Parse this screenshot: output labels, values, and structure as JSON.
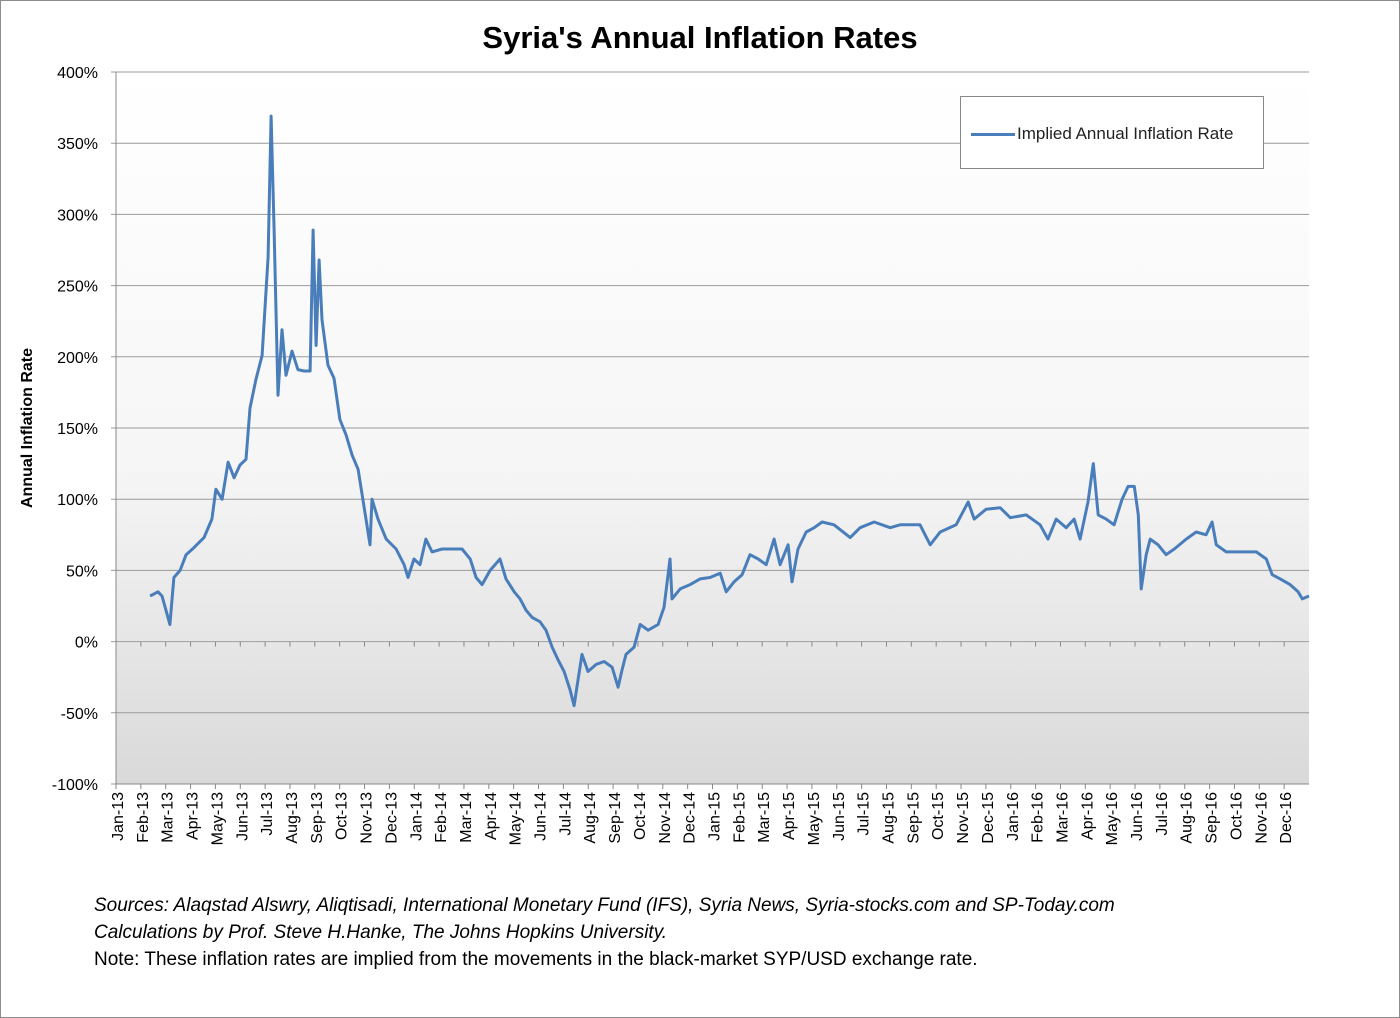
{
  "chart_data": {
    "type": "line",
    "title": "Syria's Annual Inflation Rates",
    "xlabel": "",
    "ylabel": "Annual Inflation Rate",
    "ylim": [
      -100,
      400
    ],
    "yticks": [
      "400%",
      "350%",
      "300%",
      "250%",
      "200%",
      "150%",
      "100%",
      "50%",
      "0%",
      "-50%",
      "-100%"
    ],
    "ytick_values": [
      400,
      350,
      300,
      250,
      200,
      150,
      100,
      50,
      0,
      -50,
      -100
    ],
    "x_unit": "months since Jan-13",
    "xlim": [
      0,
      48
    ],
    "xticks": [
      "Jan-13",
      "Feb-13",
      "Mar-13",
      "Apr-13",
      "May-13",
      "Jun-13",
      "Jul-13",
      "Aug-13",
      "Sep-13",
      "Oct-13",
      "Nov-13",
      "Dec-13",
      "Jan-14",
      "Feb-14",
      "Mar-14",
      "Apr-14",
      "May-14",
      "Jun-14",
      "Jul-14",
      "Aug-14",
      "Sep-14",
      "Oct-14",
      "Nov-14",
      "Dec-14",
      "Jan-15",
      "Feb-15",
      "Mar-15",
      "Apr-15",
      "May-15",
      "Jun-15",
      "Jul-15",
      "Aug-15",
      "Sep-15",
      "Oct-15",
      "Nov-15",
      "Dec-15",
      "Jan-16",
      "Feb-16",
      "Mar-16",
      "Apr-16",
      "May-16",
      "Jun-16",
      "Jul-16",
      "Aug-16",
      "Sep-16",
      "Oct-16",
      "Nov-16",
      "Dec-16"
    ],
    "grid": true,
    "legend_position": "top-right",
    "series": [
      {
        "name": "Implied Annual Inflation Rate",
        "color": "#4a7ebb",
        "x": [
          1.37,
          1.69,
          1.85,
          2.01,
          2.17,
          2.33,
          2.58,
          2.82,
          3.14,
          3.54,
          3.86,
          4.02,
          4.27,
          4.51,
          4.75,
          4.99,
          5.23,
          5.39,
          5.63,
          5.88,
          6.12,
          6.24,
          6.36,
          6.52,
          6.68,
          6.84,
          7.08,
          7.32,
          7.57,
          7.81,
          7.93,
          8.05,
          8.17,
          8.29,
          8.53,
          8.77,
          9.01,
          9.26,
          9.5,
          9.74,
          10.06,
          10.22,
          10.3,
          10.54,
          10.87,
          11.27,
          11.59,
          11.75,
          11.99,
          12.23,
          12.47,
          12.72,
          13.12,
          13.52,
          13.92,
          14.25,
          14.49,
          14.73,
          15.05,
          15.45,
          15.69,
          16.02,
          16.26,
          16.5,
          16.74,
          17.06,
          17.3,
          17.55,
          17.79,
          18.03,
          18.27,
          18.43,
          18.59,
          18.75,
          18.99,
          19.32,
          19.64,
          19.96,
          20.2,
          20.36,
          20.52,
          20.84,
          21.09,
          21.41,
          21.81,
          22.05,
          22.29,
          22.37,
          22.7,
          23.1,
          23.5,
          23.9,
          24.31,
          24.55,
          24.87,
          25.19,
          25.51,
          25.84,
          26.16,
          26.48,
          26.72,
          27.04,
          27.2,
          27.44,
          27.77,
          28.09,
          28.41,
          28.89,
          29.54,
          29.94,
          30.5,
          31.15,
          31.55,
          32.35,
          32.76,
          33.16,
          33.8,
          34.29,
          34.53,
          35.01,
          35.57,
          35.98,
          36.62,
          37.18,
          37.5,
          37.83,
          38.23,
          38.55,
          38.79,
          39.11,
          39.32,
          39.52,
          39.84,
          40.16,
          40.48,
          40.72,
          40.97,
          41.13,
          41.25,
          41.45,
          41.61,
          41.93,
          42.25,
          42.58,
          43.06,
          43.46,
          43.86,
          44.1,
          44.27,
          44.67,
          45.23,
          45.88,
          46.28,
          46.52,
          46.84,
          47.24,
          47.56,
          47.73,
          48.0
        ],
        "values": [
          32,
          35,
          32,
          22,
          12,
          45,
          50,
          61,
          66,
          73,
          86,
          107,
          100,
          126,
          115,
          124,
          128,
          164,
          184,
          201,
          270,
          369,
          289,
          173,
          219,
          187,
          204,
          191,
          190,
          190,
          289,
          208,
          268,
          226,
          194,
          185,
          156,
          145,
          131,
          121,
          86,
          68,
          100,
          86,
          72,
          65,
          54,
          45,
          58,
          54,
          72,
          63,
          65,
          65,
          65,
          58,
          45,
          40,
          50,
          58,
          44,
          35,
          30,
          22,
          17,
          14,
          8,
          -4,
          -13,
          -21,
          -34,
          -45,
          -27,
          -9,
          -21,
          -16,
          -14,
          -18,
          -32,
          -20,
          -9,
          -4,
          12,
          8,
          12,
          24,
          58,
          30,
          37,
          40,
          44,
          45,
          48,
          35,
          42,
          47,
          61,
          58,
          54,
          72,
          54,
          68,
          42,
          65,
          77,
          80,
          84,
          82,
          73,
          80,
          84,
          80,
          82,
          82,
          68,
          77,
          82,
          98,
          86,
          93,
          94,
          87,
          89,
          82,
          72,
          86,
          80,
          86,
          72,
          98,
          125,
          89,
          86,
          82,
          100,
          109,
          109,
          89,
          37,
          61,
          72,
          68,
          61,
          65,
          72,
          77,
          75,
          84,
          68,
          63,
          63,
          63,
          58,
          47,
          44,
          40,
          35,
          30,
          32
        ]
      }
    ]
  },
  "notes": {
    "sources": "Sources: Alaqstad Alswry, Aliqtisadi, International Monetary Fund (IFS), Syria News, Syria-stocks.com and SP-Today.com",
    "calculations": " Calculations by Prof. Steve H.Hanke, The Johns Hopkins University.",
    "note": "Note: These inflation rates are implied from the movements in the black-market SYP/USD exchange rate."
  }
}
